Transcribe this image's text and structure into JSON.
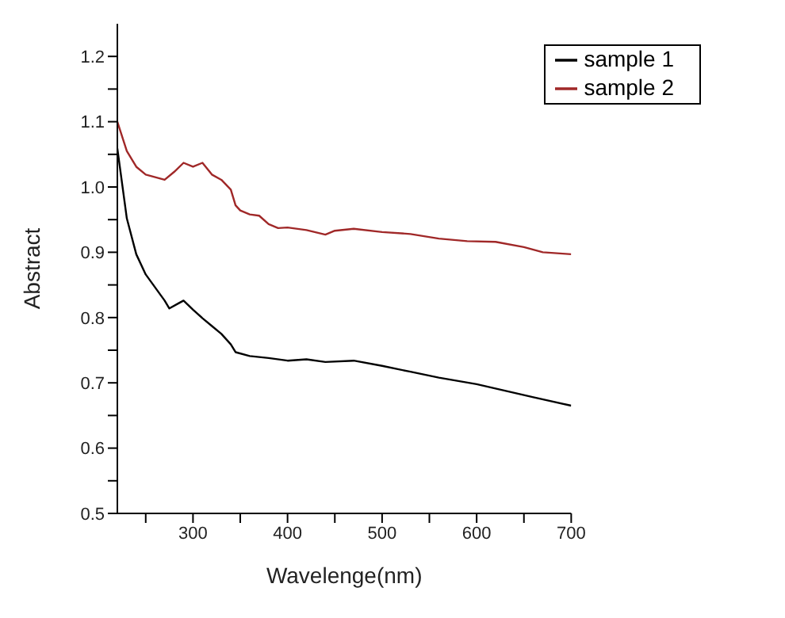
{
  "chart_data": {
    "type": "line",
    "xlabel": "Wavelenge(nm)",
    "ylabel": "Abstract",
    "xlim": [
      220,
      700
    ],
    "ylim": [
      0.5,
      1.25
    ],
    "xticks": [
      {
        "value": 250,
        "label": null
      },
      300,
      {
        "value": 350,
        "label": null
      },
      400,
      {
        "value": 450,
        "label": null
      },
      500,
      {
        "value": 550,
        "label": null
      },
      600,
      {
        "value": 650,
        "label": null
      },
      700
    ],
    "yticks": [
      0.5,
      {
        "value": 0.55,
        "label": null
      },
      0.6,
      {
        "value": 0.65,
        "label": null
      },
      0.7,
      {
        "value": 0.75,
        "label": null
      },
      0.8,
      {
        "value": 0.85,
        "label": null
      },
      0.9,
      {
        "value": 0.95,
        "label": null
      },
      {
        "value": 1,
        "label": "1.0"
      },
      {
        "value": 1.05,
        "label": null
      },
      1.1,
      {
        "value": 1.15,
        "label": null
      },
      1.2
    ],
    "grid": false,
    "legend": "top right",
    "marker": "none",
    "line_style": "solid",
    "series": [
      {
        "name": "sample 1",
        "color": "#000000",
        "x": [
          220,
          230,
          240,
          250,
          260,
          270,
          275,
          285,
          290,
          300,
          310,
          320,
          330,
          340,
          345,
          360,
          380,
          400,
          420,
          440,
          470,
          500,
          530,
          560,
          600,
          630,
          660,
          700
        ],
        "values": [
          1.059,
          0.952,
          0.897,
          0.866,
          0.846,
          0.826,
          0.814,
          0.822,
          0.826,
          0.812,
          0.799,
          0.787,
          0.775,
          0.759,
          0.747,
          0.741,
          0.738,
          0.734,
          0.736,
          0.732,
          0.734,
          0.726,
          0.717,
          0.708,
          0.698,
          0.688,
          0.678,
          0.665
        ]
      },
      {
        "name": "sample 2",
        "color": "#a02828",
        "x": [
          220,
          230,
          240,
          250,
          260,
          270,
          280,
          290,
          300,
          310,
          320,
          330,
          340,
          345,
          350,
          360,
          370,
          380,
          390,
          400,
          420,
          440,
          450,
          470,
          500,
          530,
          560,
          590,
          620,
          650,
          670,
          700
        ],
        "values": [
          1.1,
          1.055,
          1.031,
          1.019,
          1.015,
          1.011,
          1.023,
          1.037,
          1.031,
          1.037,
          1.019,
          1.011,
          0.996,
          0.972,
          0.964,
          0.958,
          0.956,
          0.943,
          0.937,
          0.938,
          0.934,
          0.927,
          0.933,
          0.936,
          0.931,
          0.928,
          0.921,
          0.917,
          0.916,
          0.908,
          0.9,
          0.897
        ]
      }
    ]
  }
}
